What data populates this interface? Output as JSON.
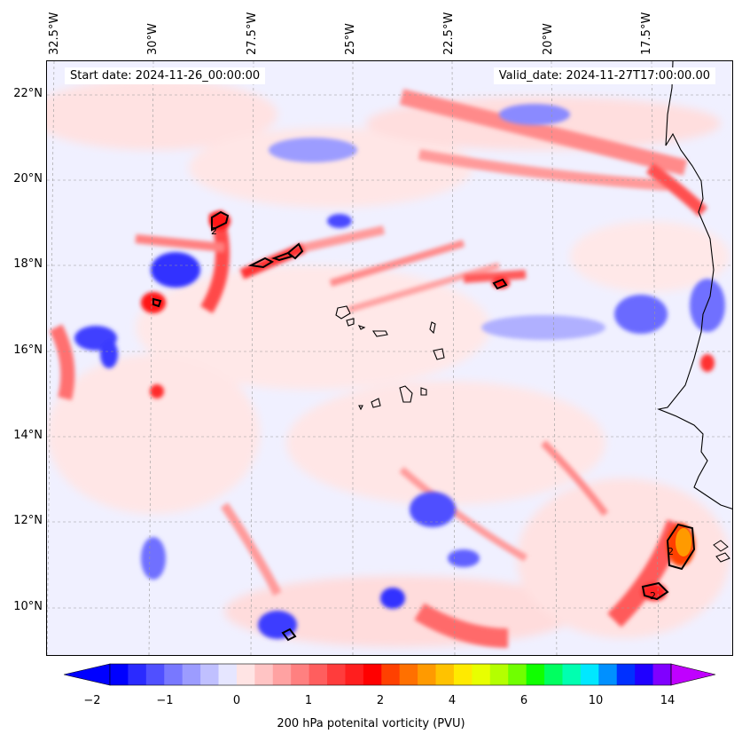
{
  "map": {
    "start_date": "Start date: 2024-11-26_00:00:00",
    "valid_date": "Valid_date: 2024-11-27T17:00:00.00",
    "lon_labels": [
      "32.5°W",
      "30°W",
      "27.5°W",
      "25°W",
      "22.5°W",
      "20°W",
      "17.5°W"
    ],
    "lat_labels": [
      "22°N",
      "20°N",
      "18°N",
      "16°N",
      "14°N",
      "12°N",
      "10°N"
    ],
    "contour_label": "2"
  },
  "colorbar": {
    "label": "200 hPa potenital vorticity (PVU)",
    "ticks": [
      "−2",
      "−1",
      "0",
      "1",
      "2",
      "4",
      "6",
      "10",
      "14"
    ],
    "colors": [
      "#0000ff",
      "#2a2aff",
      "#5050ff",
      "#7878ff",
      "#9c9cff",
      "#c0c0ff",
      "#e6e6ff",
      "#ffe4e4",
      "#ffc4c4",
      "#ffa2a2",
      "#ff8080",
      "#ff5e5e",
      "#ff3c3c",
      "#ff1e1e",
      "#ff0000",
      "#ff4000",
      "#ff7000",
      "#ff9a00",
      "#ffc200",
      "#ffea00",
      "#e8ff00",
      "#b4ff00",
      "#70ff00",
      "#10ff00",
      "#00ff60",
      "#00ffb0",
      "#00e8ff",
      "#0090ff",
      "#0030ff",
      "#2000ff",
      "#8000ff"
    ],
    "under_color": "#0000ff",
    "over_color": "#c000ff"
  }
}
